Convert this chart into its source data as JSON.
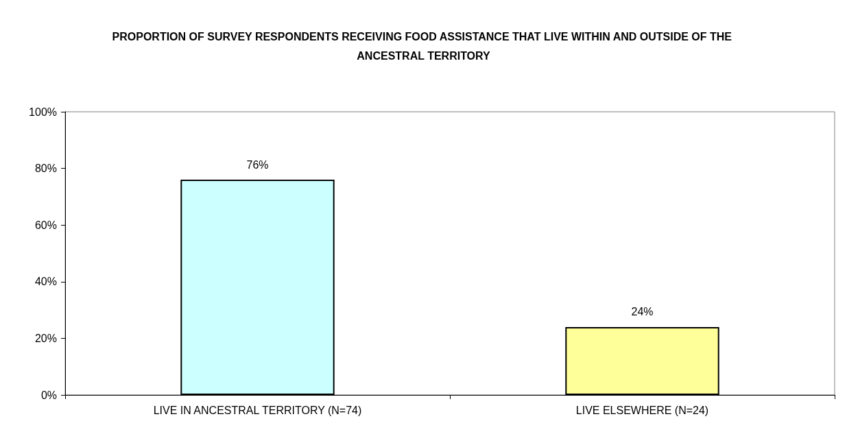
{
  "chart_data": {
    "type": "bar",
    "title": "PROPORTION OF SURVEY RESPONDENTS RECEIVING FOOD ASSISTANCE THAT LIVE WITHIN AND OUTSIDE OF THE ANCESTRAL TERRITORY",
    "categories": [
      "LIVE IN ANCESTRAL TERRITORY (N=74)",
      "LIVE ELSEWHERE (N=24)"
    ],
    "values": [
      76,
      24
    ],
    "colors": [
      "#ccffff",
      "#ffff99"
    ],
    "value_labels": [
      "76%",
      "24%"
    ],
    "ylim": [
      0,
      100
    ],
    "yticks": [
      {
        "value": 0,
        "label": "0%"
      },
      {
        "value": 20,
        "label": "20%"
      },
      {
        "value": 40,
        "label": "40%"
      },
      {
        "value": 60,
        "label": "60%"
      },
      {
        "value": 80,
        "label": "80%"
      },
      {
        "value": 100,
        "label": "100%"
      }
    ],
    "grid": false
  }
}
